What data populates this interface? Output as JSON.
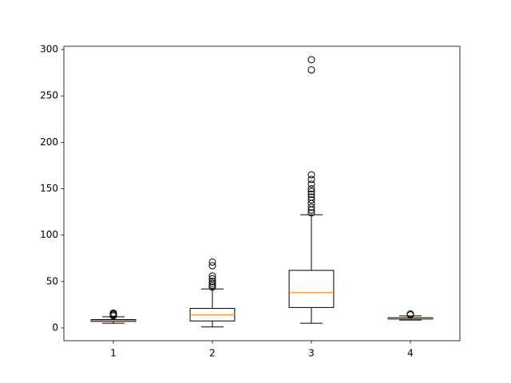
{
  "chart_data": {
    "type": "box",
    "xlim": [
      0.5,
      4.5
    ],
    "xticks": [
      1,
      2,
      3,
      4
    ],
    "ylim": [
      -13.8,
      303.5
    ],
    "yticks": [
      0,
      50,
      100,
      150,
      200,
      250,
      300
    ],
    "color": "#000000",
    "median_color": "#ff7f0e",
    "boxes": [
      {
        "whislo": 5,
        "q1": 7,
        "med": 8,
        "q3": 9,
        "whishi": 12,
        "fliers": [
          13,
          14,
          15,
          16
        ]
      },
      {
        "whislo": 1,
        "q1": 7.5,
        "med": 14,
        "q3": 21,
        "whishi": 42,
        "fliers": [
          44,
          46,
          48,
          50,
          53,
          56,
          67,
          71
        ]
      },
      {
        "whislo": 5,
        "q1": 22,
        "med": 38,
        "q3": 62,
        "whishi": 122,
        "fliers": [
          124,
          127,
          130,
          134,
          138,
          141,
          144,
          147,
          150,
          155,
          160,
          165,
          278,
          289
        ]
      },
      {
        "whislo": 8.5,
        "q1": 9.5,
        "med": 10,
        "q3": 11,
        "whishi": 13,
        "fliers": [
          14,
          15
        ]
      }
    ]
  }
}
